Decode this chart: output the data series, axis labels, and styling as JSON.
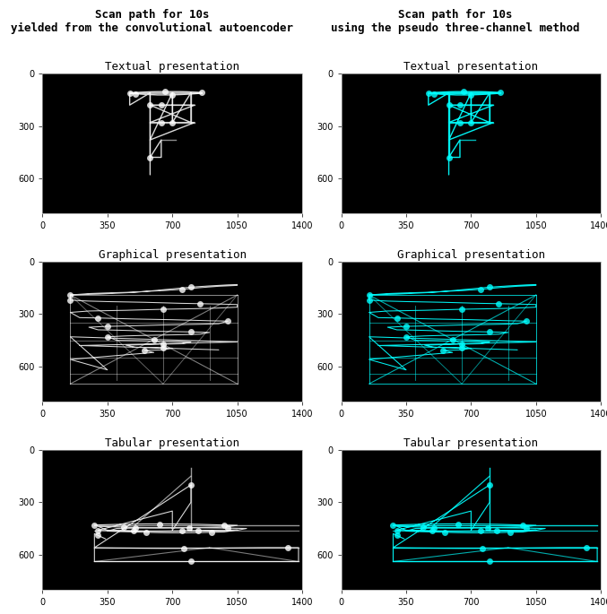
{
  "title_left": "Scan path for 10s\nyielded from the convolutional autoencoder",
  "title_right": "Scan path for 10s\nusing the pseudo three-channel method",
  "subtitles": [
    "Textual presentation",
    "Graphical presentation",
    "Tabular presentation"
  ],
  "xlim": [
    0,
    1400
  ],
  "ylim_top": 0,
  "ylim_bottom": 800,
  "xticks": [
    0,
    350,
    700,
    1050,
    1400
  ],
  "yticks": [
    0,
    300,
    600
  ],
  "bg_color": "#000000",
  "left_color": "#ffffff",
  "right_color": "#00ffff",
  "title_fontsize": 9,
  "subtitle_fontsize": 9,
  "tick_fontsize": 7,
  "figsize": [
    6.77,
    6.85
  ],
  "dpi": 100
}
